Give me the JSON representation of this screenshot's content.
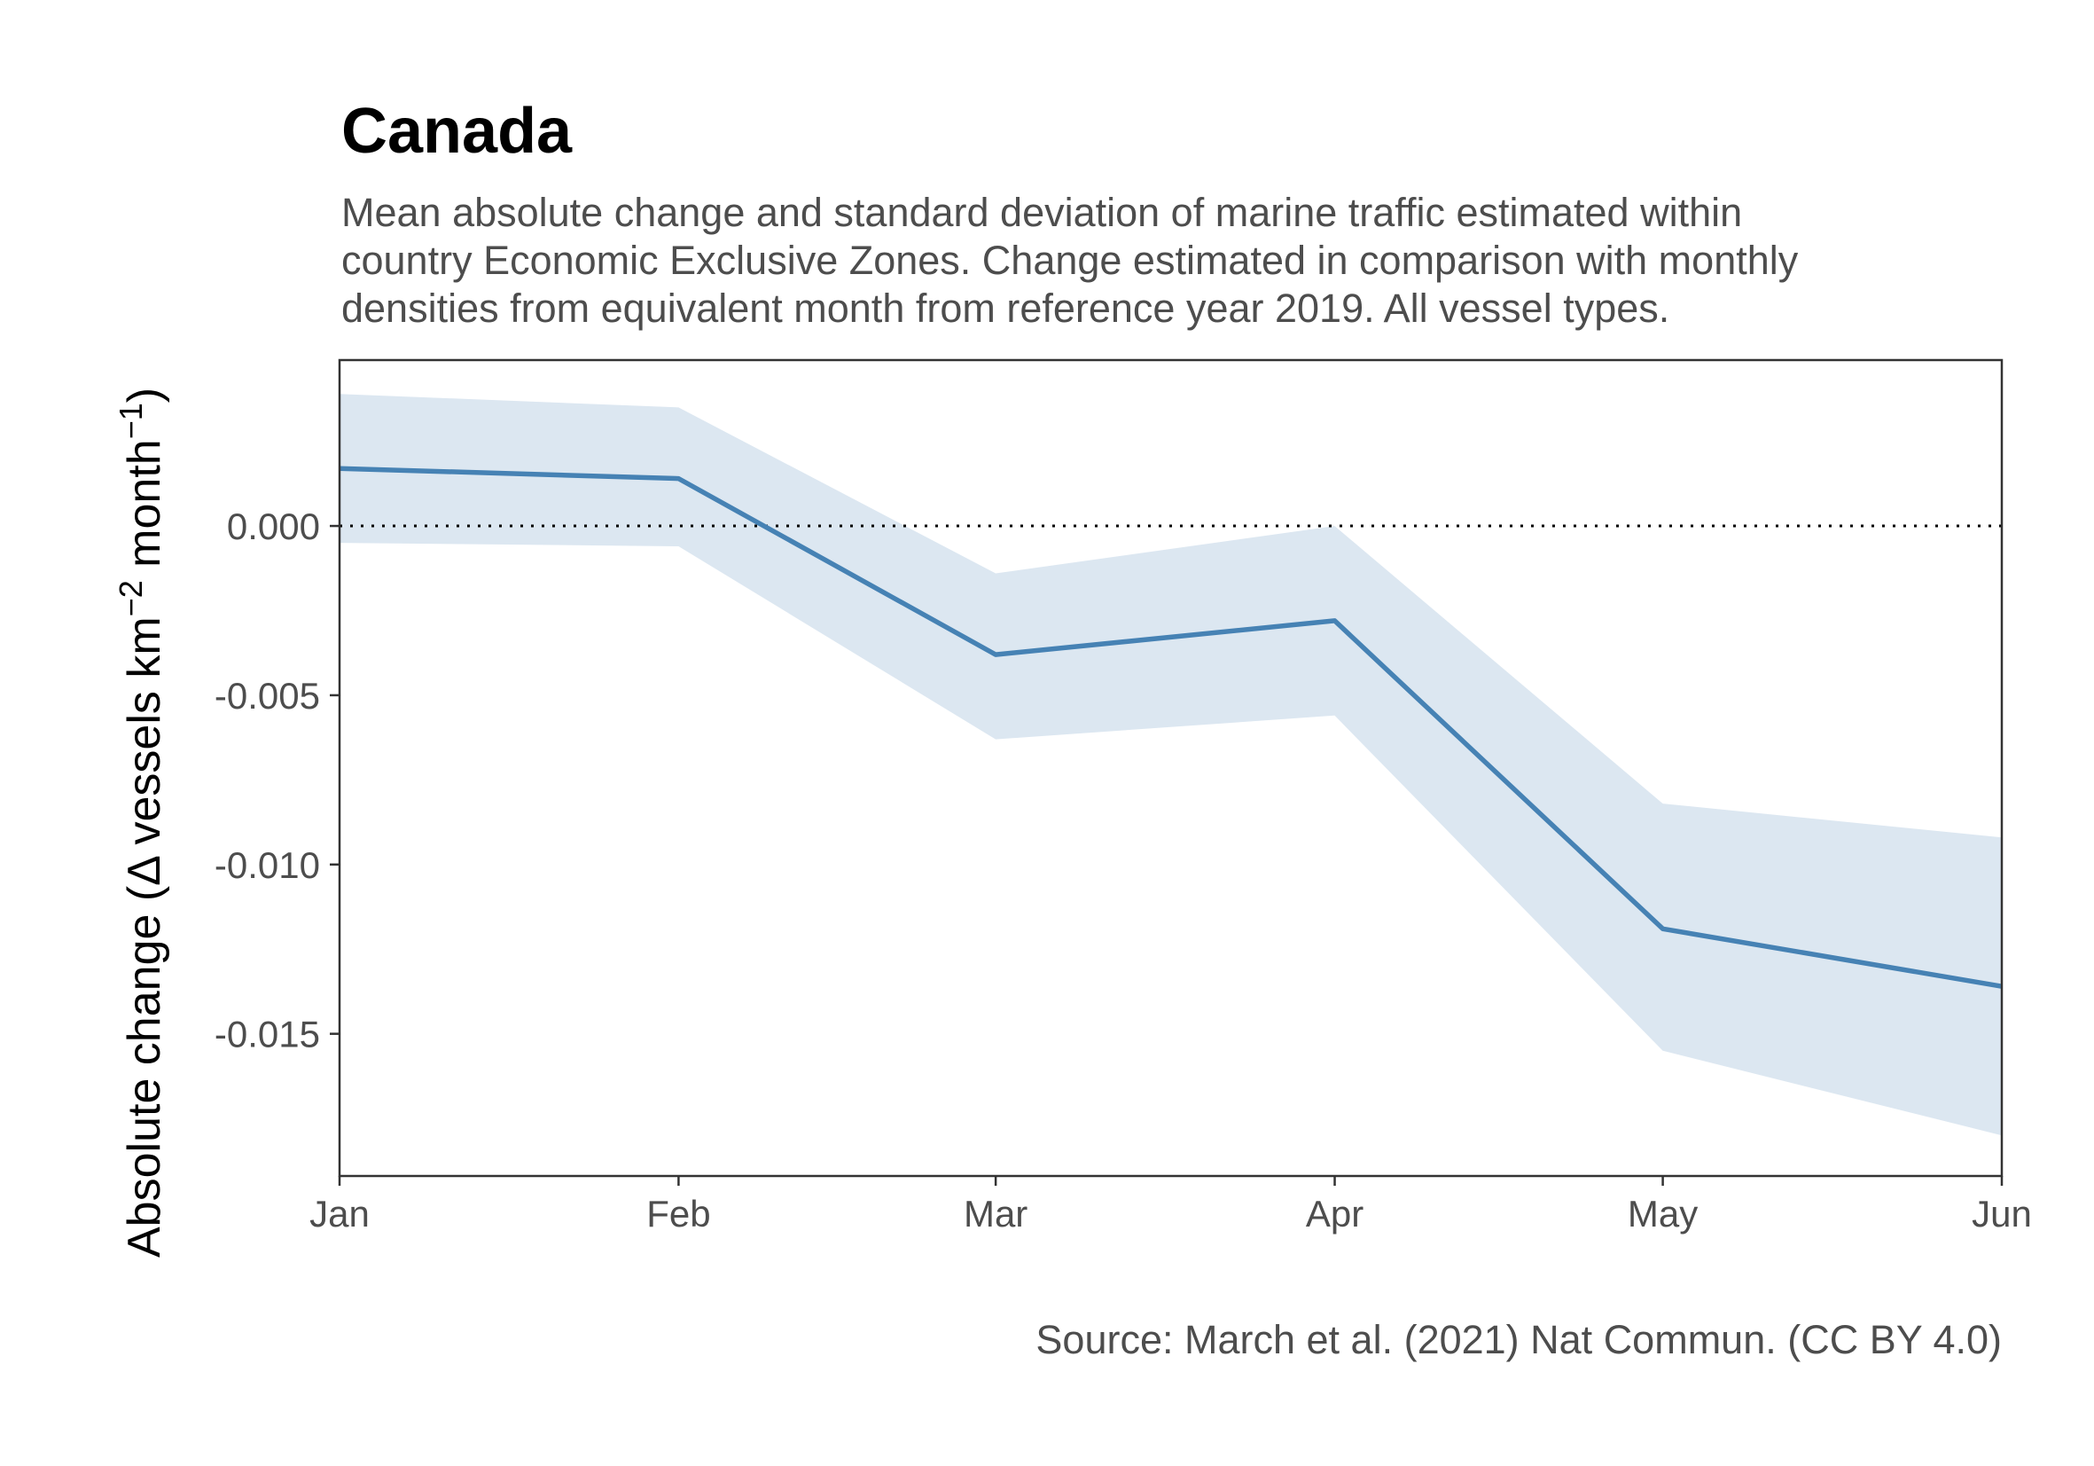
{
  "chart_data": {
    "type": "line",
    "title": "Canada",
    "subtitle_lines": [
      "Mean absolute change and standard deviation of marine traffic estimated within",
      "country Economic Exclusive Zones. Change estimated in comparison with monthly",
      "densities from equivalent month from reference year 2019. All vessel types."
    ],
    "ylabel": {
      "prefix": "Absolute change (",
      "delta": "Δ",
      "main": " vessels km",
      "sup1": "−2",
      "mid": " month",
      "sup2": "−1",
      "suffix": ")"
    },
    "xlabel": "",
    "caption": "Source: March et al. (2021) Nat Commun. (CC BY 4.0)",
    "categories": [
      "Jan",
      "Feb",
      "Mar",
      "Apr",
      "May",
      "Jun"
    ],
    "x_days": [
      1,
      32,
      61,
      92,
      122,
      153
    ],
    "mean": [
      0.0017,
      0.0014,
      -0.0038,
      -0.0028,
      -0.0119,
      -0.0136
    ],
    "lower": [
      -0.0005,
      -0.0006,
      -0.0063,
      -0.0056,
      -0.0155,
      -0.018
    ],
    "upper": [
      0.0039,
      0.0035,
      -0.0014,
      0.0,
      -0.0082,
      -0.0092
    ],
    "reference_line": 0,
    "ylim": [
      -0.0192,
      0.0049
    ],
    "yticks": [
      0.0,
      -0.005,
      -0.01,
      -0.015
    ],
    "ytick_labels": [
      "0.000",
      "-0.005",
      "-0.010",
      "-0.015"
    ],
    "colors": {
      "line": "#4682b4",
      "ribbon": "#dce7f1",
      "reference": "#000000",
      "axis": "#333333",
      "tick_text": "#4d4d4d"
    },
    "grid": false,
    "legend": "none"
  }
}
